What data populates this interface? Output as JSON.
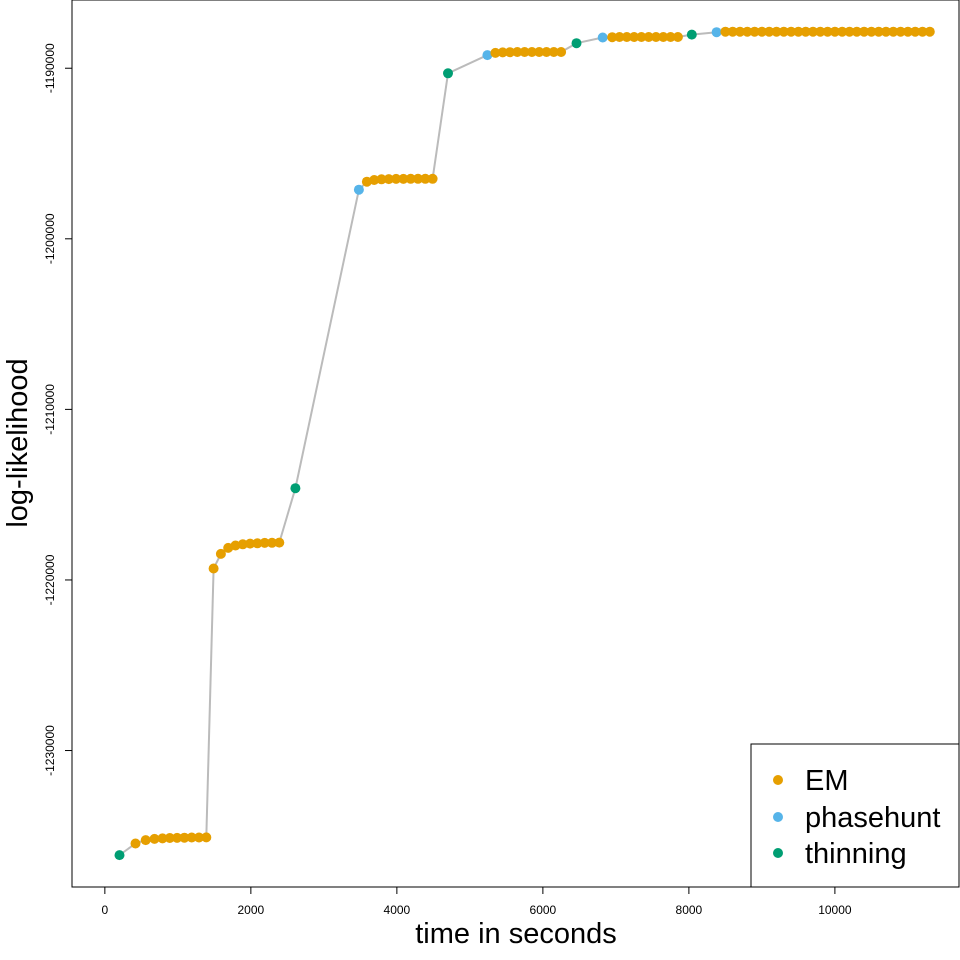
{
  "chart_data": {
    "type": "scatter",
    "title": "",
    "xlabel": "time in seconds",
    "ylabel": "log-likelihood",
    "xlim": [
      -450,
      11700
    ],
    "ylim": [
      -1238000,
      -1186000
    ],
    "x_ticks": [
      0,
      2000,
      4000,
      6000,
      8000,
      10000
    ],
    "x_tick_labels": [
      "0",
      "2000",
      "4000",
      "6000",
      "8000",
      "10000"
    ],
    "y_ticks": [
      -1230000,
      -1220000,
      -1210000,
      -1200000,
      -1190000
    ],
    "y_tick_labels": [
      "-1230000",
      "-1220000",
      "-1210000",
      "-1200000",
      "-1190000"
    ],
    "grid": false,
    "legend_position": "bottom-right",
    "colors": {
      "EM": "#E69F00",
      "phasehunt": "#56B4E9",
      "thinning": "#009E73",
      "line": "#bbbbbb"
    },
    "legend": [
      "EM",
      "phasehunt",
      "thinning"
    ],
    "series": [
      {
        "name": "EM",
        "points": [
          [
            420,
            -1235450
          ],
          [
            560,
            -1235250
          ],
          [
            680,
            -1235180
          ],
          [
            790,
            -1235150
          ],
          [
            890,
            -1235130
          ],
          [
            990,
            -1235120
          ],
          [
            1090,
            -1235110
          ],
          [
            1190,
            -1235100
          ],
          [
            1290,
            -1235100
          ],
          [
            1390,
            -1235090
          ],
          [
            1490,
            -1219330
          ],
          [
            1590,
            -1218470
          ],
          [
            1690,
            -1218120
          ],
          [
            1790,
            -1217980
          ],
          [
            1890,
            -1217910
          ],
          [
            1990,
            -1217870
          ],
          [
            2090,
            -1217850
          ],
          [
            2190,
            -1217830
          ],
          [
            2290,
            -1217820
          ],
          [
            2390,
            -1217810
          ],
          [
            3590,
            -1196650
          ],
          [
            3690,
            -1196550
          ],
          [
            3790,
            -1196510
          ],
          [
            3890,
            -1196500
          ],
          [
            3990,
            -1196490
          ],
          [
            4090,
            -1196490
          ],
          [
            4190,
            -1196480
          ],
          [
            4290,
            -1196480
          ],
          [
            4390,
            -1196480
          ],
          [
            4490,
            -1196480
          ],
          [
            5350,
            -1189100
          ],
          [
            5450,
            -1189070
          ],
          [
            5550,
            -1189060
          ],
          [
            5650,
            -1189050
          ],
          [
            5750,
            -1189050
          ],
          [
            5850,
            -1189050
          ],
          [
            5950,
            -1189050
          ],
          [
            6050,
            -1189050
          ],
          [
            6150,
            -1189050
          ],
          [
            6250,
            -1189050
          ],
          [
            6950,
            -1188180
          ],
          [
            7050,
            -1188170
          ],
          [
            7150,
            -1188170
          ],
          [
            7250,
            -1188170
          ],
          [
            7350,
            -1188170
          ],
          [
            7450,
            -1188170
          ],
          [
            7550,
            -1188170
          ],
          [
            7650,
            -1188170
          ],
          [
            7750,
            -1188170
          ],
          [
            7850,
            -1188170
          ],
          [
            8500,
            -1187860
          ],
          [
            8600,
            -1187860
          ],
          [
            8700,
            -1187860
          ],
          [
            8800,
            -1187860
          ],
          [
            8900,
            -1187860
          ],
          [
            9000,
            -1187860
          ],
          [
            9100,
            -1187860
          ],
          [
            9200,
            -1187860
          ],
          [
            9300,
            -1187860
          ],
          [
            9400,
            -1187860
          ],
          [
            9500,
            -1187860
          ],
          [
            9600,
            -1187860
          ],
          [
            9700,
            -1187860
          ],
          [
            9800,
            -1187860
          ],
          [
            9900,
            -1187860
          ],
          [
            10000,
            -1187860
          ],
          [
            10100,
            -1187860
          ],
          [
            10200,
            -1187860
          ],
          [
            10300,
            -1187860
          ],
          [
            10400,
            -1187860
          ],
          [
            10500,
            -1187860
          ],
          [
            10600,
            -1187860
          ],
          [
            10700,
            -1187860
          ],
          [
            10800,
            -1187860
          ],
          [
            10900,
            -1187860
          ],
          [
            11000,
            -1187860
          ],
          [
            11100,
            -1187860
          ],
          [
            11200,
            -1187860
          ],
          [
            11300,
            -1187860
          ]
        ]
      },
      {
        "name": "phasehunt",
        "points": [
          [
            3480,
            -1197120
          ],
          [
            5240,
            -1189230
          ],
          [
            6820,
            -1188200
          ],
          [
            8380,
            -1187890
          ]
        ]
      },
      {
        "name": "thinning",
        "points": [
          [
            200,
            -1236130
          ],
          [
            2610,
            -1214620
          ],
          [
            4700,
            -1190300
          ],
          [
            6460,
            -1188530
          ],
          [
            8040,
            -1188030
          ]
        ]
      }
    ]
  }
}
